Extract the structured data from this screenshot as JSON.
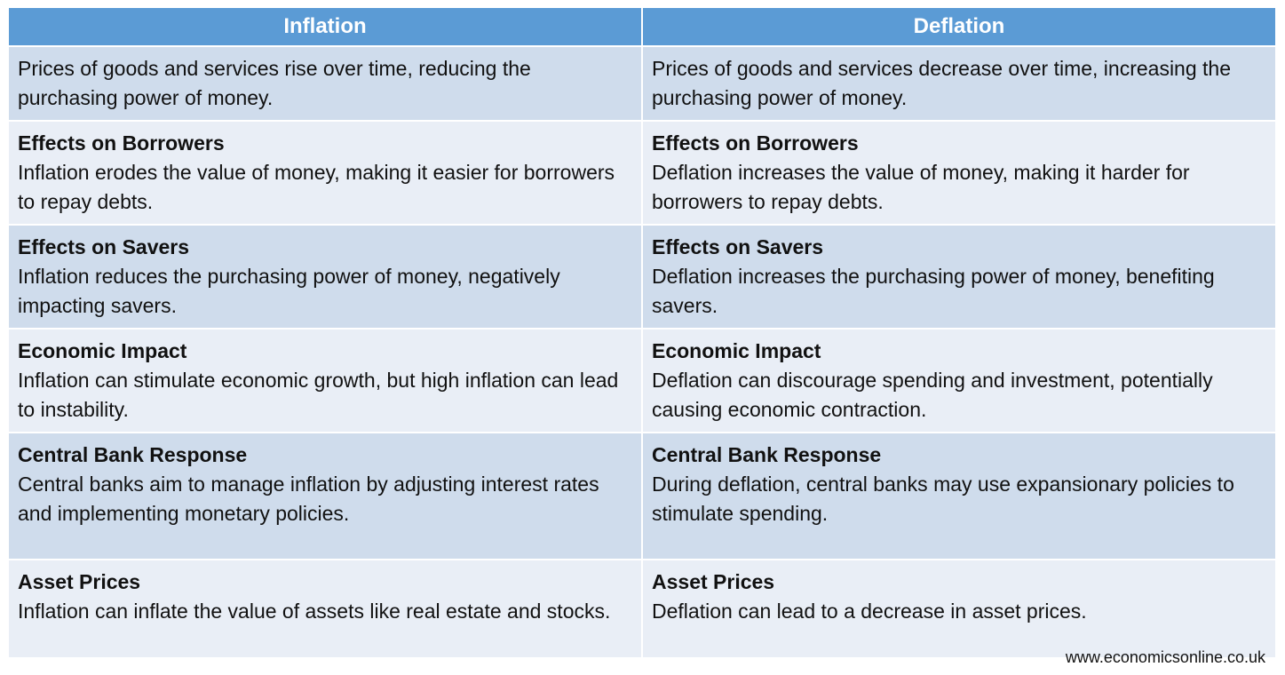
{
  "table": {
    "headers": [
      "Inflation",
      "Deflation"
    ],
    "rows": [
      {
        "inflation": {
          "heading": "",
          "text": "Prices of goods and services rise over time, reducing the purchasing power of money."
        },
        "deflation": {
          "heading": "",
          "text": "Prices of goods and services decrease over time, increasing the purchasing power of money."
        }
      },
      {
        "inflation": {
          "heading": "Effects on Borrowers",
          "text": "Inflation erodes the value of money, making it easier for borrowers to repay debts."
        },
        "deflation": {
          "heading": "Effects on Borrowers",
          "text": "Deflation increases the value of money, making it harder for borrowers to repay debts."
        }
      },
      {
        "inflation": {
          "heading": "Effects on Savers",
          "text": "Inflation reduces the purchasing power of money, negatively impacting savers."
        },
        "deflation": {
          "heading": "Effects on Savers",
          "text": "Deflation increases the purchasing power of money, benefiting savers."
        }
      },
      {
        "inflation": {
          "heading": "Economic Impact",
          "text": "Inflation can stimulate economic growth, but high inflation can lead to instability."
        },
        "deflation": {
          "heading": "Economic Impact",
          "text": "Deflation can discourage spending and investment, potentially causing economic contraction."
        }
      },
      {
        "inflation": {
          "heading": "Central Bank Response",
          "text": "Central banks aim to manage inflation by adjusting interest rates and implementing monetary policies."
        },
        "deflation": {
          "heading": "Central Bank Response",
          "text": "During deflation, central banks may use expansionary policies to stimulate spending."
        }
      },
      {
        "inflation": {
          "heading": "Asset Prices",
          "text": "Inflation can inflate the value of assets like real estate and stocks."
        },
        "deflation": {
          "heading": "Asset Prices",
          "text": "Deflation can lead to a decrease in asset prices."
        }
      }
    ]
  },
  "footer": {
    "url": "www.economicsonline.co.uk"
  },
  "colors": {
    "header_bg": "#5b9bd5",
    "row_dark_bg": "#cfdcec",
    "row_light_bg": "#e9eef6"
  }
}
